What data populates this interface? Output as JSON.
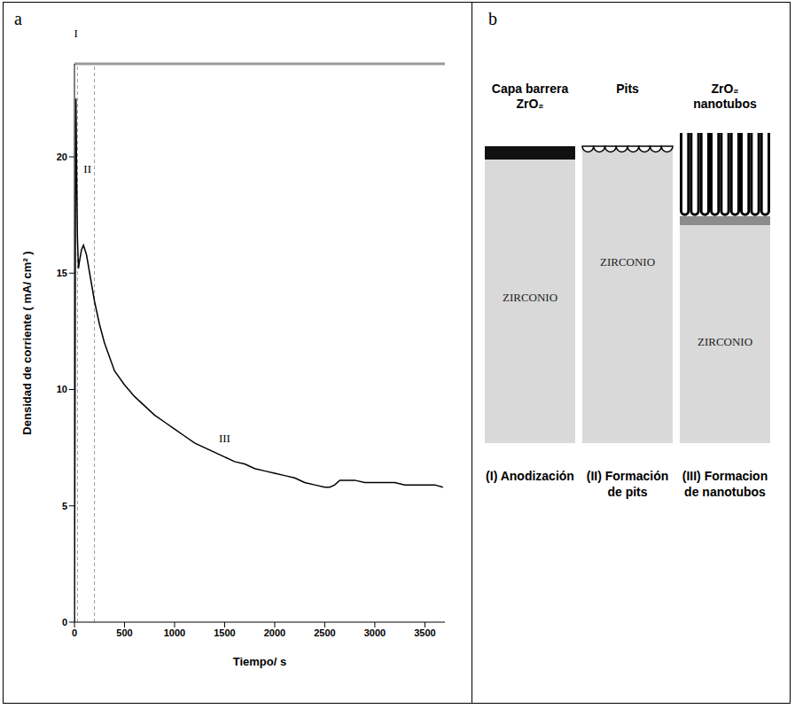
{
  "chart_data": {
    "type": "line",
    "panel_label": "a",
    "x_label": "Tiempo/ s",
    "y_label": "Densidad de corriente ( mA/ cm² )",
    "x": [
      0,
      5,
      10,
      15,
      20,
      30,
      40,
      50,
      70,
      90,
      120,
      160,
      200,
      250,
      300,
      400,
      500,
      600,
      700,
      800,
      900,
      1000,
      1100,
      1200,
      1300,
      1400,
      1500,
      1600,
      1700,
      1800,
      1900,
      2000,
      2100,
      2200,
      2300,
      2400,
      2500,
      2550,
      2600,
      2650,
      2700,
      2800,
      2900,
      3000,
      3100,
      3200,
      3300,
      3400,
      3500,
      3600,
      3680
    ],
    "values": [
      0,
      8,
      18,
      22.5,
      20,
      16.5,
      15.2,
      15.5,
      16,
      16.2,
      15.8,
      14.8,
      13.8,
      12.8,
      12,
      10.8,
      10.2,
      9.7,
      9.3,
      8.9,
      8.6,
      8.3,
      8,
      7.7,
      7.5,
      7.3,
      7.1,
      6.9,
      6.8,
      6.6,
      6.5,
      6.4,
      6.3,
      6.2,
      6,
      5.9,
      5.8,
      5.8,
      5.9,
      6.1,
      6.1,
      6.1,
      6,
      6,
      6,
      6,
      5.9,
      5.9,
      5.9,
      5.9,
      5.8
    ],
    "color": "#000000",
    "xlim": [
      0,
      3700
    ],
    "xticks": [
      0,
      500,
      1000,
      1500,
      2000,
      2500,
      3000,
      3500
    ],
    "ylim": [
      0,
      24
    ],
    "yticks": [
      0,
      5,
      10,
      15,
      20
    ],
    "grid": false,
    "boundaries": [
      30,
      200
    ],
    "annotations": [
      {
        "text": "I",
        "x": 15,
        "y": 25.3
      },
      {
        "text": "II",
        "x": 130,
        "y": 19.5
      },
      {
        "text": "III",
        "x": 1500,
        "y": 7.9
      }
    ]
  },
  "diagram": {
    "panel_label": "b",
    "columns": [
      {
        "heading": "Capa barrera ZrO₂",
        "body": "ZIRCONIO",
        "caption": "(I) Anodización"
      },
      {
        "heading": "Pits",
        "body": "ZIRCONIO",
        "caption": "(II) Formación de pits"
      },
      {
        "heading": "ZrO₂ nanotubos",
        "body": "ZIRCONIO",
        "caption": "(III) Formacion de nanotubos"
      }
    ]
  }
}
